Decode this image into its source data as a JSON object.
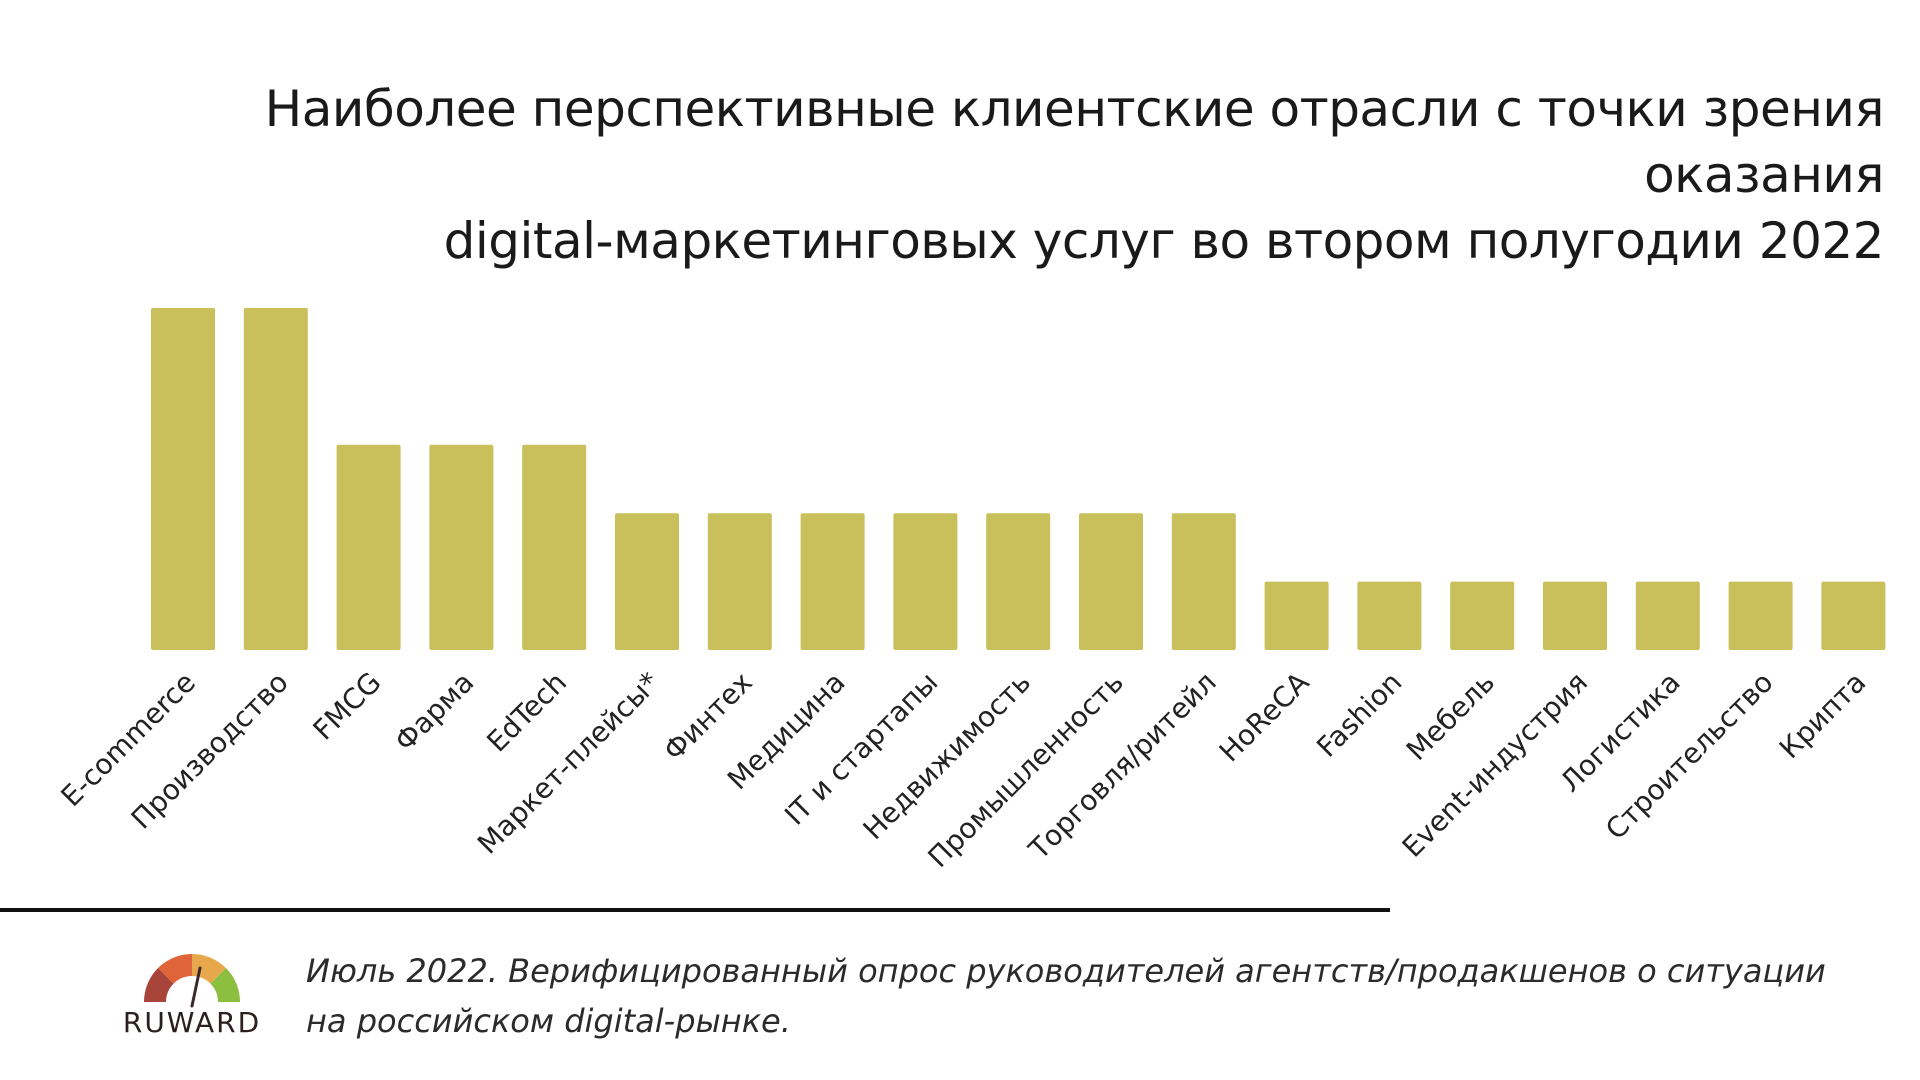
{
  "title": {
    "line1": "Наиболее перспективные клиентские отрасли с точки зрения оказания",
    "line2": "digital-маркетинговых услуг во втором полугодии 2022"
  },
  "chart_data": {
    "type": "bar",
    "title": "Наиболее перспективные клиентские отрасли с точки зрения оказания digital-маркетинговых услуг во втором полугодии 2022",
    "xlabel": "",
    "ylabel": "",
    "ylim": [
      0,
      5
    ],
    "grid": false,
    "bar_color": "#c9c05c",
    "categories": [
      "E-commerce",
      "Производство",
      "FMCG",
      "Фарма",
      "EdTech",
      "Маркет-плейсы*",
      "Финтех",
      "Медицина",
      "IT и стартапы",
      "Недвижимость",
      "Промышленность",
      "Торговля/ритейл",
      "HoReCA",
      "Fashion",
      "Мебель",
      "Event-индустрия",
      "Логистика",
      "Строительство",
      "Крипта"
    ],
    "values": [
      5,
      5,
      3,
      3,
      3,
      2,
      2,
      2,
      2,
      2,
      2,
      2,
      1,
      1,
      1,
      1,
      1,
      1,
      1
    ]
  },
  "footer": {
    "logo_text": "RUWARD",
    "logo_colors": [
      "#a8443a",
      "#e0643a",
      "#e6a84a",
      "#8cbf3f"
    ],
    "note_line1": "Июль 2022. Верифицированный опрос руководителей агентств/продакшенов о ситуации",
    "note_line2": "на российском digital-рынке."
  }
}
